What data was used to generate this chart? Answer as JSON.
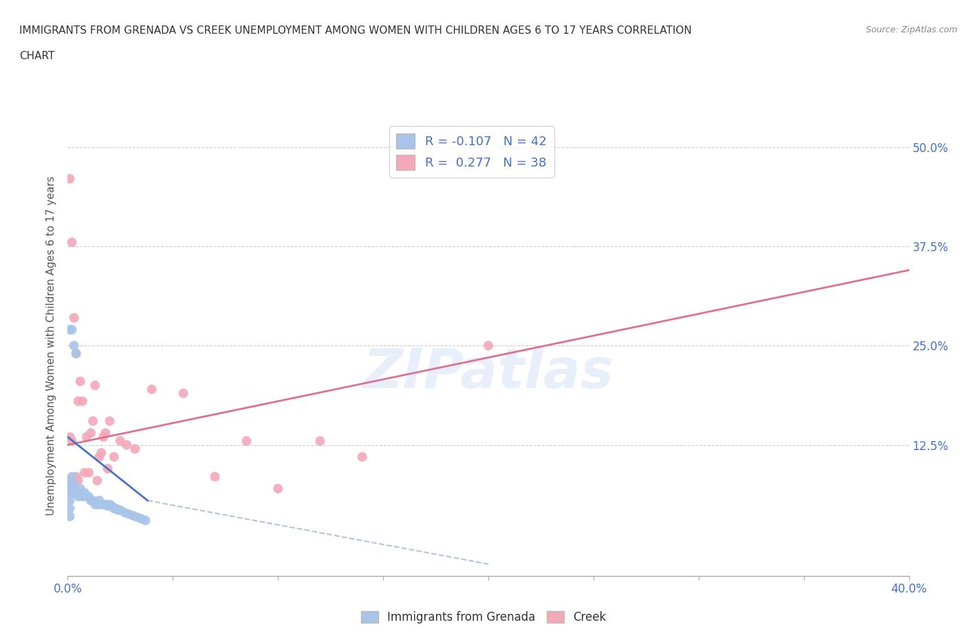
{
  "title_line1": "IMMIGRANTS FROM GRENADA VS CREEK UNEMPLOYMENT AMONG WOMEN WITH CHILDREN AGES 6 TO 17 YEARS CORRELATION",
  "title_line2": "CHART",
  "source": "Source: ZipAtlas.com",
  "ylabel": "Unemployment Among Women with Children Ages 6 to 17 years",
  "xlim": [
    0.0,
    0.4
  ],
  "ylim": [
    -0.04,
    0.54
  ],
  "x_ticks": [
    0.0,
    0.05,
    0.1,
    0.15,
    0.2,
    0.25,
    0.3,
    0.35,
    0.4
  ],
  "y_tick_positions": [
    0.0,
    0.125,
    0.25,
    0.375,
    0.5
  ],
  "y_tick_labels_right": [
    "",
    "12.5%",
    "25.0%",
    "37.5%",
    "50.0%"
  ],
  "blue_R": -0.107,
  "blue_N": 42,
  "pink_R": 0.277,
  "pink_N": 38,
  "blue_color": "#a8c4e8",
  "pink_color": "#f4a8b8",
  "blue_line_color": "#4472c4",
  "pink_line_color": "#e07090",
  "dashed_line_color": "#b0c4de",
  "watermark": "ZIPatlas",
  "blue_points_x": [
    0.001,
    0.001,
    0.001,
    0.001,
    0.001,
    0.002,
    0.002,
    0.002,
    0.003,
    0.003,
    0.004,
    0.005,
    0.006,
    0.007,
    0.008,
    0.009,
    0.01,
    0.011,
    0.012,
    0.013,
    0.014,
    0.015,
    0.016,
    0.017,
    0.018,
    0.019,
    0.02,
    0.021,
    0.022,
    0.023,
    0.024,
    0.025,
    0.027,
    0.029,
    0.031,
    0.033,
    0.035,
    0.037,
    0.001,
    0.002,
    0.003,
    0.004
  ],
  "blue_points_y": [
    0.075,
    0.065,
    0.055,
    0.045,
    0.035,
    0.085,
    0.075,
    0.065,
    0.075,
    0.065,
    0.065,
    0.06,
    0.07,
    0.06,
    0.065,
    0.06,
    0.06,
    0.055,
    0.055,
    0.05,
    0.05,
    0.055,
    0.05,
    0.05,
    0.05,
    0.048,
    0.05,
    0.048,
    0.045,
    0.045,
    0.043,
    0.043,
    0.04,
    0.038,
    0.036,
    0.034,
    0.032,
    0.03,
    0.27,
    0.27,
    0.25,
    0.24
  ],
  "pink_points_x": [
    0.001,
    0.001,
    0.002,
    0.002,
    0.003,
    0.003,
    0.004,
    0.004,
    0.005,
    0.005,
    0.006,
    0.007,
    0.008,
    0.009,
    0.01,
    0.011,
    0.012,
    0.013,
    0.014,
    0.015,
    0.016,
    0.017,
    0.018,
    0.019,
    0.02,
    0.022,
    0.025,
    0.028,
    0.032,
    0.04,
    0.055,
    0.07,
    0.085,
    0.1,
    0.12,
    0.14,
    0.2,
    0.001
  ],
  "pink_points_y": [
    0.46,
    0.08,
    0.38,
    0.13,
    0.285,
    0.08,
    0.24,
    0.085,
    0.18,
    0.08,
    0.205,
    0.18,
    0.09,
    0.135,
    0.09,
    0.14,
    0.155,
    0.2,
    0.08,
    0.11,
    0.115,
    0.135,
    0.14,
    0.095,
    0.155,
    0.11,
    0.13,
    0.125,
    0.12,
    0.195,
    0.19,
    0.085,
    0.13,
    0.07,
    0.13,
    0.11,
    0.25,
    0.135
  ],
  "pink_line_x0": 0.0,
  "pink_line_y0": 0.125,
  "pink_line_x1": 0.4,
  "pink_line_y1": 0.345,
  "blue_line_x0": 0.0,
  "blue_line_y0": 0.135,
  "blue_line_x1": 0.038,
  "blue_line_y1": 0.055,
  "dash_line_x0": 0.038,
  "dash_line_y0": 0.055,
  "dash_line_x1": 0.2,
  "dash_line_y1": -0.025
}
